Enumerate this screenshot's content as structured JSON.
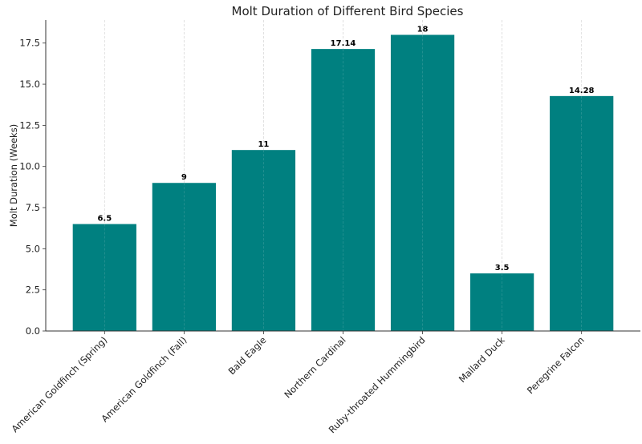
{
  "chart_data": {
    "type": "bar",
    "title": "Molt Duration of Different Bird Species",
    "xlabel": "",
    "ylabel": "Molt Duration (Weeks)",
    "categories": [
      "American Goldfinch (Spring)",
      "American Goldfinch (Fall)",
      "Bald Eagle",
      "Northern Cardinal",
      "Ruby-throated Hummingbird",
      "Mallard Duck",
      "Peregrine Falcon"
    ],
    "values": [
      6.5,
      9,
      11,
      17.14,
      18,
      3.5,
      14.28
    ],
    "data_labels": [
      "6.5",
      "9",
      "11",
      "17.14",
      "18",
      "3.5",
      "14.28"
    ],
    "ylim": [
      0,
      18.9
    ],
    "yticks": [
      0,
      2.5,
      5,
      7.5,
      10,
      12.5,
      15,
      17.5
    ],
    "ytick_labels": [
      "0.0",
      "2.5",
      "5.0",
      "7.5",
      "10.0",
      "12.5",
      "15.0",
      "17.5"
    ],
    "grid": "x-dashed",
    "bar_color": "#008080"
  }
}
